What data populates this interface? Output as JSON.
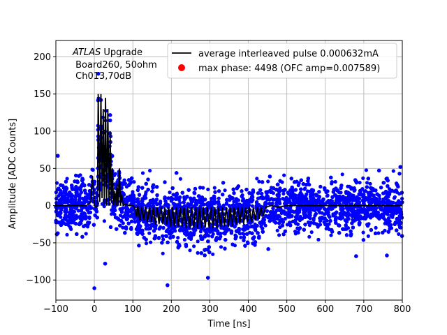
{
  "chart_data": {
    "type": "scatter",
    "title": "",
    "xlabel": "Time [ns]",
    "ylabel": "Amplitude [ADC Counts]",
    "xlim": [
      -100,
      800
    ],
    "ylim": [
      -127,
      222
    ],
    "xticks": [
      -100,
      0,
      100,
      200,
      300,
      400,
      500,
      600,
      700,
      800
    ],
    "yticks": [
      -100,
      -50,
      0,
      50,
      100,
      150,
      200
    ],
    "grid": true,
    "legend_position": "top-right",
    "annotation": {
      "line1_italic": "ATLAS",
      "line1_rest": " Upgrade",
      "line2": " Board260, 50ohm",
      "line3": " Ch013,70dB"
    },
    "colors": {
      "samples": "#0000ff",
      "pulse": "#000000",
      "max_phase": "#ff0000",
      "grid": "#b0b0b0"
    },
    "series": [
      {
        "name": "average interleaved pulse 0.000632mA",
        "kind": "line",
        "x": [
          -100,
          -20,
          -10,
          -5,
          0,
          5,
          8,
          10,
          14,
          17,
          20,
          23,
          26,
          29,
          32,
          35,
          38,
          41,
          44,
          47,
          50,
          53,
          56,
          59,
          62,
          65,
          68,
          71,
          75,
          80,
          90,
          100,
          105,
          110,
          113,
          118,
          123,
          128,
          133,
          138,
          143,
          148,
          153,
          158,
          163,
          168,
          173,
          178,
          183,
          188,
          193,
          198,
          203,
          208,
          213,
          218,
          223,
          228,
          233,
          238,
          243,
          248,
          253,
          258,
          263,
          268,
          273,
          278,
          283,
          288,
          293,
          298,
          303,
          308,
          313,
          318,
          323,
          328,
          333,
          338,
          343,
          348,
          353,
          358,
          363,
          368,
          373,
          378,
          383,
          388,
          393,
          398,
          403,
          408,
          413,
          418,
          423,
          428,
          433,
          438,
          445,
          460,
          480,
          500,
          550,
          600,
          650,
          700,
          750,
          800
        ],
        "y": [
          0,
          0,
          5,
          40,
          0,
          -2,
          0,
          150,
          5,
          150,
          10,
          130,
          0,
          145,
          0,
          130,
          0,
          100,
          5,
          50,
          0,
          20,
          0,
          30,
          0,
          50,
          0,
          15,
          0,
          2,
          0,
          0,
          -3,
          -15,
          0,
          -20,
          -2,
          -20,
          -2,
          -22,
          -2,
          -22,
          -2,
          -25,
          -2,
          -25,
          -2,
          -25,
          -2,
          -25,
          -2,
          -28,
          -2,
          -28,
          -2,
          -28,
          -2,
          -28,
          -2,
          -30,
          -2,
          -30,
          -2,
          -30,
          -2,
          -30,
          -2,
          -30,
          -2,
          -30,
          -2,
          -30,
          -2,
          -30,
          -2,
          -30,
          -2,
          -28,
          -2,
          -28,
          -2,
          -28,
          -2,
          -28,
          -2,
          -25,
          -2,
          -25,
          -2,
          -25,
          -2,
          -22,
          -2,
          -22,
          -2,
          -20,
          -2,
          -18,
          -2,
          -15,
          -2,
          0,
          -2,
          0,
          0,
          0,
          0,
          0,
          0,
          0
        ]
      },
      {
        "name": "max phase: 4498 (OFC amp=0.007589)",
        "kind": "point",
        "x": [],
        "y": []
      }
    ],
    "samples": {
      "description_free": true,
      "x_range": [
        -100,
        800
      ],
      "noise_sigma_adc": 18,
      "outliers": [
        {
          "x": 0,
          "y": -111
        },
        {
          "x": 190,
          "y": -107
        },
        {
          "x": 295,
          "y": -97
        },
        {
          "x": 28,
          "y": -78
        },
        {
          "x": 680,
          "y": -68
        },
        {
          "x": 760,
          "y": -67
        },
        {
          "x": -95,
          "y": 67
        },
        {
          "x": 795,
          "y": 52
        }
      ]
    }
  }
}
